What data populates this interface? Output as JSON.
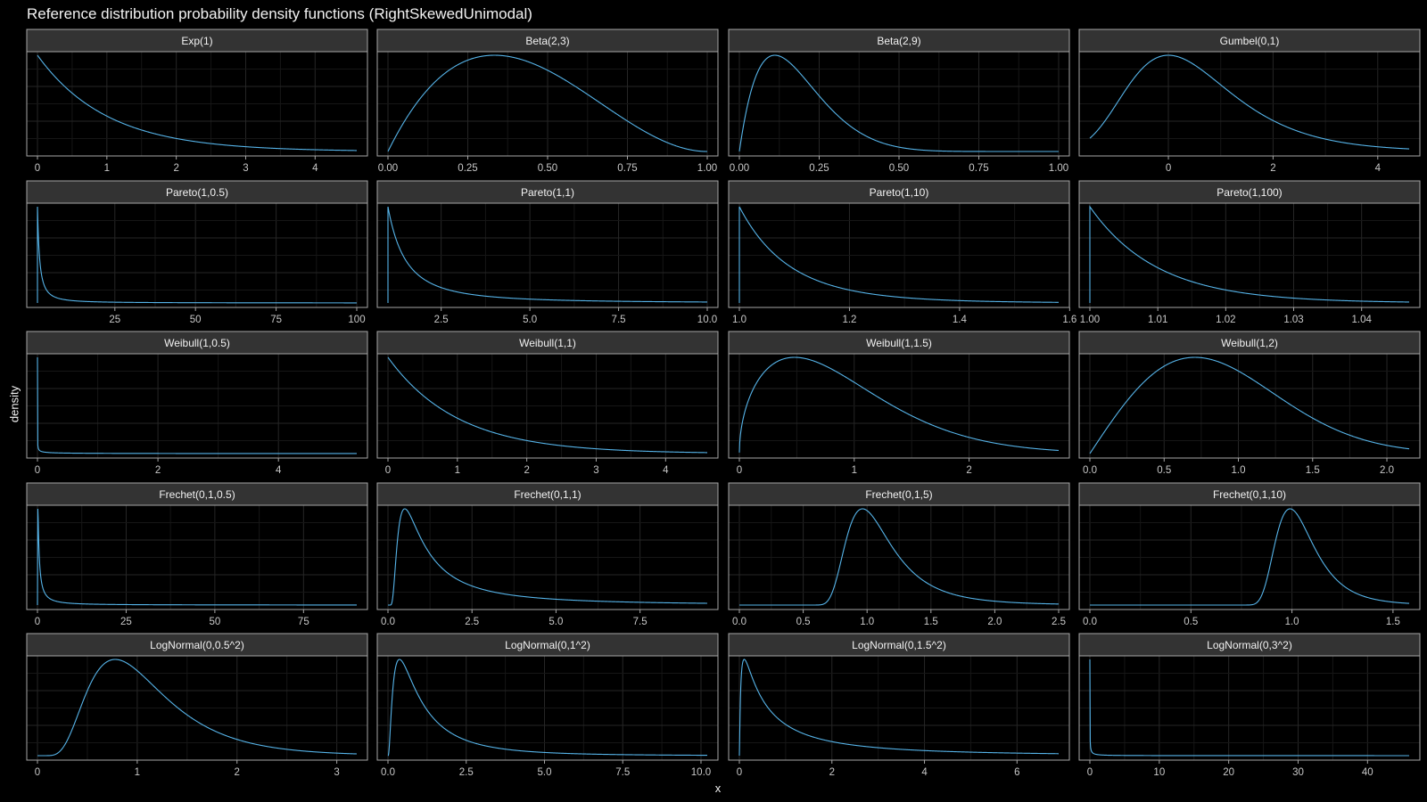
{
  "chart_data": {
    "type": "line",
    "title": "Reference distribution probability density functions (RightSkewedUnimodal)",
    "xlabel": "x",
    "ylabel": "density",
    "line_color": "#56b4e9",
    "panels": [
      {
        "label": "Exp(1)",
        "dist": "exp",
        "params": [
          1
        ],
        "xlim": [
          0,
          4.6
        ],
        "xticks": [
          0,
          1,
          2,
          3,
          4
        ],
        "tick_labels": [
          "0",
          "1",
          "2",
          "3",
          "4"
        ]
      },
      {
        "label": "Beta(2,3)",
        "dist": "beta",
        "params": [
          2,
          3
        ],
        "xlim": [
          0,
          1
        ],
        "xticks": [
          0,
          0.25,
          0.5,
          0.75,
          1
        ],
        "tick_labels": [
          "0.00",
          "0.25",
          "0.50",
          "0.75",
          "1.00"
        ]
      },
      {
        "label": "Beta(2,9)",
        "dist": "beta",
        "params": [
          2,
          9
        ],
        "xlim": [
          0,
          1
        ],
        "xticks": [
          0,
          0.25,
          0.5,
          0.75,
          1
        ],
        "tick_labels": [
          "0.00",
          "0.25",
          "0.50",
          "0.75",
          "1.00"
        ]
      },
      {
        "label": "Gumbel(0,1)",
        "dist": "gumbel",
        "params": [
          0,
          1
        ],
        "xlim": [
          -1.5,
          4.6
        ],
        "xticks": [
          0,
          2,
          4
        ],
        "tick_labels": [
          "0",
          "2",
          "4"
        ]
      },
      {
        "label": "Pareto(1,0.5)",
        "dist": "pareto",
        "params": [
          1,
          0.5
        ],
        "xlim": [
          1,
          100
        ],
        "xticks": [
          25,
          50,
          75,
          100
        ],
        "tick_labels": [
          "25",
          "50",
          "75",
          "100"
        ]
      },
      {
        "label": "Pareto(1,1)",
        "dist": "pareto",
        "params": [
          1,
          1
        ],
        "xlim": [
          1,
          10
        ],
        "xticks": [
          2.5,
          5,
          7.5,
          10
        ],
        "tick_labels": [
          "2.5",
          "5.0",
          "7.5",
          "10.0"
        ]
      },
      {
        "label": "Pareto(1,10)",
        "dist": "pareto",
        "params": [
          1,
          10
        ],
        "xlim": [
          1,
          1.58
        ],
        "xticks": [
          1,
          1.2,
          1.4,
          1.6
        ],
        "tick_labels": [
          "1.0",
          "1.2",
          "1.4",
          "1.6"
        ]
      },
      {
        "label": "Pareto(1,100)",
        "dist": "pareto",
        "params": [
          1,
          100
        ],
        "xlim": [
          1,
          1.047
        ],
        "xticks": [
          1,
          1.01,
          1.02,
          1.03,
          1.04
        ],
        "tick_labels": [
          "1.00",
          "1.01",
          "1.02",
          "1.03",
          "1.04"
        ]
      },
      {
        "label": "Weibull(1,0.5)",
        "dist": "weibull",
        "params": [
          1,
          0.5
        ],
        "xlim": [
          0,
          5.3
        ],
        "xticks": [
          0,
          2,
          4
        ],
        "tick_labels": [
          "0",
          "2",
          "4"
        ]
      },
      {
        "label": "Weibull(1,1)",
        "dist": "weibull",
        "params": [
          1,
          1
        ],
        "xlim": [
          0,
          4.6
        ],
        "xticks": [
          0,
          1,
          2,
          3,
          4
        ],
        "tick_labels": [
          "0",
          "1",
          "2",
          "3",
          "4"
        ]
      },
      {
        "label": "Weibull(1,1.5)",
        "dist": "weibull",
        "params": [
          1,
          1.5
        ],
        "xlim": [
          0,
          2.78
        ],
        "xticks": [
          0,
          1,
          2
        ],
        "tick_labels": [
          "0",
          "1",
          "2"
        ]
      },
      {
        "label": "Weibull(1,2)",
        "dist": "weibull",
        "params": [
          1,
          2
        ],
        "xlim": [
          0,
          2.15
        ],
        "xticks": [
          0,
          0.5,
          1,
          1.5,
          2
        ],
        "tick_labels": [
          "0.0",
          "0.5",
          "1.0",
          "1.5",
          "2.0"
        ]
      },
      {
        "label": "Frechet(0,1,0.5)",
        "dist": "frechet",
        "params": [
          0,
          1,
          0.5
        ],
        "xlim": [
          0,
          90
        ],
        "xticks": [
          0,
          25,
          50,
          75
        ],
        "tick_labels": [
          "0",
          "25",
          "50",
          "75"
        ]
      },
      {
        "label": "Frechet(0,1,1)",
        "dist": "frechet",
        "params": [
          0,
          1,
          1
        ],
        "xlim": [
          0,
          9.5
        ],
        "xticks": [
          0,
          2.5,
          5,
          7.5
        ],
        "tick_labels": [
          "0.0",
          "2.5",
          "5.0",
          "7.5"
        ]
      },
      {
        "label": "Frechet(0,1,5)",
        "dist": "frechet",
        "params": [
          0,
          1,
          5
        ],
        "xlim": [
          0,
          2.5
        ],
        "xticks": [
          0,
          0.5,
          1,
          1.5,
          2,
          2.5
        ],
        "tick_labels": [
          "0.0",
          "0.5",
          "1.0",
          "1.5",
          "2.0",
          "2.5"
        ]
      },
      {
        "label": "Frechet(0,1,10)",
        "dist": "frechet",
        "params": [
          0,
          1,
          10
        ],
        "xlim": [
          0,
          1.58
        ],
        "xticks": [
          0,
          0.5,
          1,
          1.5
        ],
        "tick_labels": [
          "0.0",
          "0.5",
          "1.0",
          "1.5"
        ]
      },
      {
        "label": "LogNormal(0,0.5^2)",
        "dist": "lognormal",
        "params": [
          0,
          0.5
        ],
        "xlim": [
          0,
          3.2
        ],
        "xticks": [
          0,
          1,
          2,
          3
        ],
        "tick_labels": [
          "0",
          "1",
          "2",
          "3"
        ]
      },
      {
        "label": "LogNormal(0,1^2)",
        "dist": "lognormal",
        "params": [
          0,
          1
        ],
        "xlim": [
          0,
          10.2
        ],
        "xticks": [
          0,
          2.5,
          5,
          7.5,
          10
        ],
        "tick_labels": [
          "0.0",
          "2.5",
          "5.0",
          "7.5",
          "10.0"
        ]
      },
      {
        "label": "LogNormal(0,1.5^2)",
        "dist": "lognormal",
        "params": [
          0,
          1.5
        ],
        "xlim": [
          0,
          6.9
        ],
        "xticks": [
          0,
          2,
          4,
          6
        ],
        "tick_labels": [
          "0",
          "2",
          "4",
          "6"
        ]
      },
      {
        "label": "LogNormal(0,3^2)",
        "dist": "lognormal",
        "params": [
          0,
          3
        ],
        "xlim": [
          0,
          46
        ],
        "xticks": [
          0,
          10,
          20,
          30,
          40
        ],
        "tick_labels": [
          "0",
          "10",
          "20",
          "30",
          "40"
        ]
      }
    ]
  }
}
